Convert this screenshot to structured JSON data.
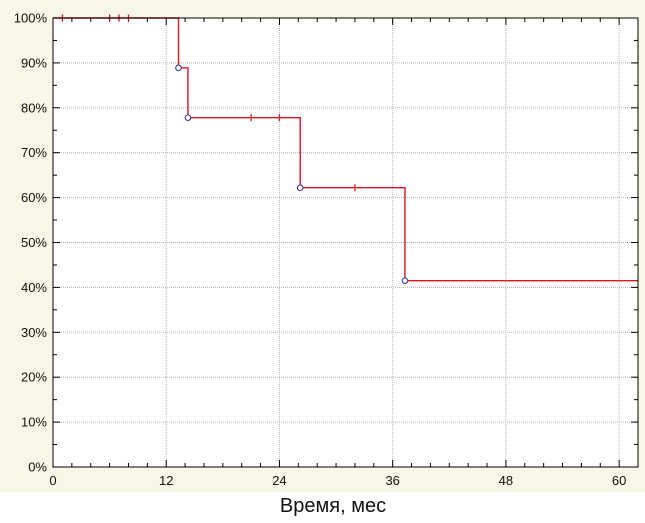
{
  "chart_data": {
    "type": "line",
    "subtype": "kaplan-meier-step",
    "xlabel": "Время, мес",
    "ylabel": "",
    "title": "",
    "xlim": [
      0,
      62
    ],
    "ylim": [
      0,
      100
    ],
    "x_ticks": [
      0,
      12,
      24,
      36,
      48,
      60
    ],
    "y_ticks": [
      0,
      10,
      20,
      30,
      40,
      50,
      60,
      70,
      80,
      90,
      100
    ],
    "y_tick_labels": [
      "0%",
      "10%",
      "20%",
      "30%",
      "40%",
      "50%",
      "60%",
      "70%",
      "80%",
      "90%",
      "100%"
    ],
    "grid": true,
    "colors": {
      "line": "#e0141e",
      "event_marker": "#2a2aa0",
      "plot_bg": "#ffffff",
      "outer_bg": "#f8f6e6",
      "grid": "#b4b4b4"
    },
    "series": [
      {
        "step_points": [
          {
            "x": 0,
            "y": 100
          },
          {
            "x": 13.3,
            "y": 88.9
          },
          {
            "x": 14.3,
            "y": 77.8
          },
          {
            "x": 26.2,
            "y": 62.2
          },
          {
            "x": 37.3,
            "y": 41.5
          },
          {
            "x": 62,
            "y": 41.5
          }
        ],
        "events": [
          {
            "x": 13.3,
            "y": 88.9
          },
          {
            "x": 14.3,
            "y": 77.8
          },
          {
            "x": 26.2,
            "y": 62.2
          },
          {
            "x": 37.3,
            "y": 41.5
          }
        ],
        "censored": [
          {
            "x": 1,
            "y": 100
          },
          {
            "x": 6,
            "y": 100
          },
          {
            "x": 7,
            "y": 100
          },
          {
            "x": 8,
            "y": 100
          },
          {
            "x": 21,
            "y": 77.8
          },
          {
            "x": 24,
            "y": 77.8
          },
          {
            "x": 32,
            "y": 62.2
          }
        ]
      }
    ]
  }
}
